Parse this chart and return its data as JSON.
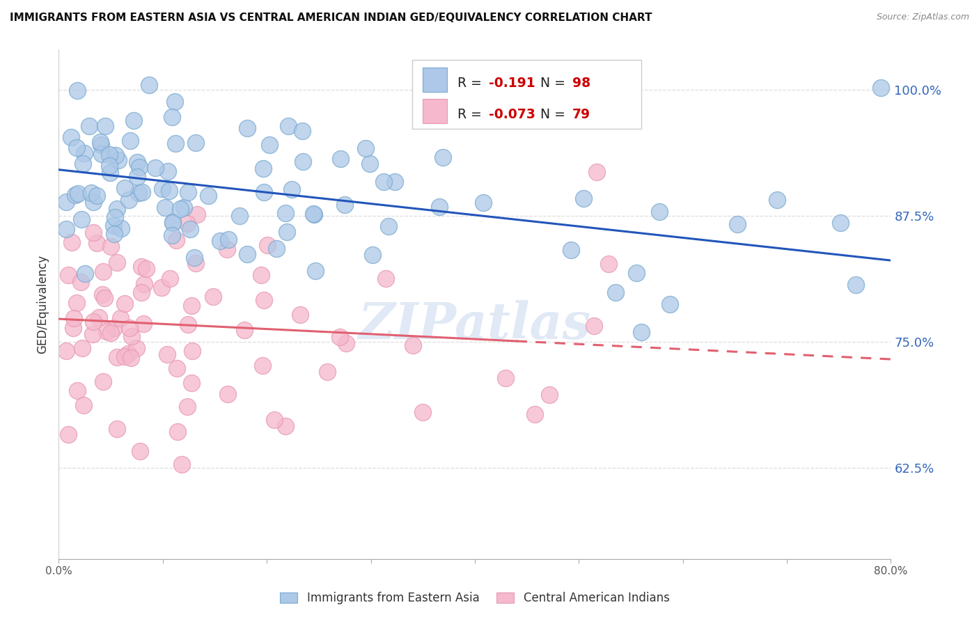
{
  "title": "IMMIGRANTS FROM EASTERN ASIA VS CENTRAL AMERICAN INDIAN GED/EQUIVALENCY CORRELATION CHART",
  "source": "Source: ZipAtlas.com",
  "ylabel": "GED/Equivalency",
  "x_min": 0.0,
  "x_max": 0.8,
  "y_min": 0.535,
  "y_max": 1.04,
  "y_ticks": [
    0.625,
    0.75,
    0.875,
    1.0
  ],
  "y_tick_labels": [
    "62.5%",
    "75.0%",
    "87.5%",
    "100.0%"
  ],
  "x_ticks": [
    0.0,
    0.1,
    0.2,
    0.3,
    0.4,
    0.5,
    0.6,
    0.7,
    0.8
  ],
  "x_tick_labels": [
    "0.0%",
    "",
    "",
    "",
    "",
    "",
    "",
    "",
    "80.0%"
  ],
  "blue_R": -0.191,
  "blue_N": 98,
  "pink_R": -0.073,
  "pink_N": 79,
  "blue_color": "#adc8e8",
  "blue_edge": "#7aaad0",
  "pink_color": "#f5b8cc",
  "pink_edge": "#e898b0",
  "blue_line_color": "#2255bb",
  "pink_line_color": "#e06070",
  "legend_label_blue": "Immigrants from Eastern Asia",
  "legend_label_pink": "Central American Indians",
  "watermark": "ZIPatlas",
  "blue_line_x": [
    0.0,
    0.8
  ],
  "blue_line_y": [
    0.921,
    0.831
  ],
  "pink_line_x": [
    0.0,
    0.8
  ],
  "pink_line_y": [
    0.773,
    0.733
  ],
  "pink_line_solid_end": 0.44,
  "background_color": "#ffffff",
  "grid_color": "#dddddd",
  "scatter_size": 300
}
